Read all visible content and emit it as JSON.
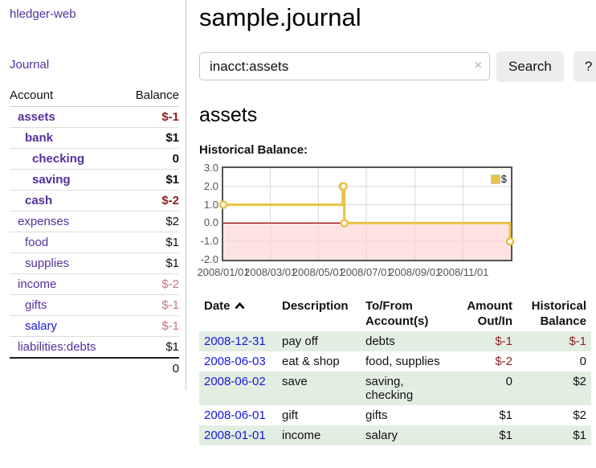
{
  "colors": {
    "link_purple": "#54309c",
    "link_blue": "#1616dd",
    "negative_strong": "#8e1f1f",
    "negative_soft": "#c87878",
    "row_stripe_green": "#e2eee2",
    "button_bg": "#ededed",
    "divider": "#cccccc",
    "chart_border": "#545454",
    "chart_line_gold": "#e9c246"
  },
  "sidebar": {
    "brand": "hledger-web",
    "journal_label": "Journal",
    "accounts_table": {
      "headers": [
        "Account",
        "Balance"
      ],
      "rows": [
        {
          "account": "assets",
          "balance": "$-1",
          "indent": 1,
          "bold": true,
          "balance_tone": "neg-strong"
        },
        {
          "account": "bank",
          "balance": "$1",
          "indent": 2,
          "bold": true,
          "balance_tone": "normal"
        },
        {
          "account": "checking",
          "balance": "0",
          "indent": 3,
          "bold": true,
          "balance_tone": "normal"
        },
        {
          "account": "saving",
          "balance": "$1",
          "indent": 3,
          "bold": true,
          "balance_tone": "normal"
        },
        {
          "account": "cash",
          "balance": "$-2",
          "indent": 2,
          "bold": true,
          "balance_tone": "neg-strong"
        },
        {
          "account": "expenses",
          "balance": "$2",
          "indent": 1,
          "bold": false,
          "balance_tone": "normal"
        },
        {
          "account": "food",
          "balance": "$1",
          "indent": 2,
          "bold": false,
          "balance_tone": "normal"
        },
        {
          "account": "supplies",
          "balance": "$1",
          "indent": 2,
          "bold": false,
          "balance_tone": "normal"
        },
        {
          "account": "income",
          "balance": "$-2",
          "indent": 1,
          "bold": false,
          "balance_tone": "neg-soft"
        },
        {
          "account": "gifts",
          "balance": "$-1",
          "indent": 2,
          "bold": false,
          "balance_tone": "neg-soft"
        },
        {
          "account": "salary",
          "balance": "$-1",
          "indent": 2,
          "bold": false,
          "balance_tone": "neg-soft",
          "link_tone": "blue"
        },
        {
          "account": "liabilities:debts",
          "balance": "$1",
          "indent": 1,
          "bold": false,
          "balance_tone": "normal"
        }
      ],
      "total": "0"
    }
  },
  "main": {
    "title": "sample.journal",
    "search": {
      "value": "inacct:assets",
      "clear_icon": "×",
      "button_label": "Search",
      "help_label": "?"
    },
    "account_heading": "assets"
  },
  "chart_data": {
    "type": "line",
    "step": true,
    "title": "Historical Balance:",
    "x_domain": [
      "2008-01-01",
      "2009-01-01"
    ],
    "ylim": [
      -2,
      3
    ],
    "grid": true,
    "legend_position": "top-right",
    "zero_line_color": "#8b0000",
    "negative_region_color": "#ffcccc",
    "y_ticks": [
      {
        "value": 3,
        "label": "3.0"
      },
      {
        "value": 2,
        "label": "2.0"
      },
      {
        "value": 1,
        "label": "1.0"
      },
      {
        "value": 0,
        "label": "0.0"
      },
      {
        "value": -1,
        "label": "-1.0"
      },
      {
        "value": -2,
        "label": "-2.0"
      }
    ],
    "x_ticks": [
      {
        "date": "2008-01-01",
        "label": "2008/01/01"
      },
      {
        "date": "2008-03-01",
        "label": "2008/03/01"
      },
      {
        "date": "2008-05-01",
        "label": "2008/05/01"
      },
      {
        "date": "2008-07-01",
        "label": "2008/07/01"
      },
      {
        "date": "2008-09-01",
        "label": "2008/09/01"
      },
      {
        "date": "2008-11-01",
        "label": "2008/11/01"
      }
    ],
    "series": [
      {
        "name": "$",
        "color": "#e9c246",
        "points": [
          [
            "2008-01-01",
            1
          ],
          [
            "2008-06-01",
            2
          ],
          [
            "2008-06-02",
            2
          ],
          [
            "2008-06-03",
            0
          ],
          [
            "2008-12-31",
            -1
          ]
        ]
      }
    ]
  },
  "register_table": {
    "headers": [
      "Date",
      "Description",
      "To/From Account(s)",
      "Amount Out/In",
      "Historical Balance"
    ],
    "sort": "ascending",
    "rows": [
      {
        "date": "2008-12-31",
        "description": "pay off",
        "accounts": "debts",
        "amount": "$-1",
        "amount_negative": true,
        "balance": "$-1",
        "balance_negative": true
      },
      {
        "date": "2008-06-03",
        "description": "eat & shop",
        "accounts": "food, supplies",
        "amount": "$-2",
        "amount_negative": true,
        "balance": "0",
        "balance_negative": false
      },
      {
        "date": "2008-06-02",
        "description": "save",
        "accounts": "saving, checking",
        "amount": "0",
        "amount_negative": false,
        "balance": "$2",
        "balance_negative": false
      },
      {
        "date": "2008-06-01",
        "description": "gift",
        "accounts": "gifts",
        "amount": "$1",
        "amount_negative": false,
        "balance": "$2",
        "balance_negative": false
      },
      {
        "date": "2008-01-01",
        "description": "income",
        "accounts": "salary",
        "amount": "$1",
        "amount_negative": false,
        "balance": "$1",
        "balance_negative": false
      }
    ]
  }
}
